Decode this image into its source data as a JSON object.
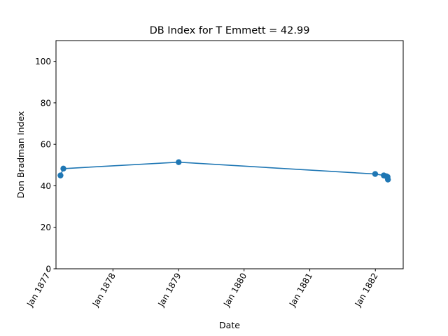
{
  "chart_data": {
    "type": "line",
    "title": "DB Index for T Emmett = 42.99",
    "xlabel": "Date",
    "ylabel": "Don Bradman Index",
    "ylim": [
      0,
      110
    ],
    "yticks": [
      0,
      20,
      40,
      60,
      80,
      100
    ],
    "xlim": [
      "1877-02-18",
      "1882-06-05"
    ],
    "xticks": [
      {
        "date": "1877-01-01",
        "label": "Jan 1877"
      },
      {
        "date": "1878-01-01",
        "label": "Jan 1878"
      },
      {
        "date": "1879-01-01",
        "label": "Jan 1879"
      },
      {
        "date": "1880-01-01",
        "label": "Jan 1880"
      },
      {
        "date": "1881-01-01",
        "label": "Jan 1881"
      },
      {
        "date": "1882-01-01",
        "label": "Jan 1882"
      }
    ],
    "grid": false,
    "color": "#1f77b4",
    "series": [
      {
        "x": [
          "1877-03-15",
          "1877-03-31",
          "1879-01-02",
          "1881-12-31",
          "1882-02-17",
          "1882-03-03",
          "1882-03-10",
          "1882-03-12"
        ],
        "y": [
          45.0,
          48.3,
          51.4,
          45.7,
          45.0,
          44.6,
          44.3,
          43.0
        ]
      }
    ]
  }
}
